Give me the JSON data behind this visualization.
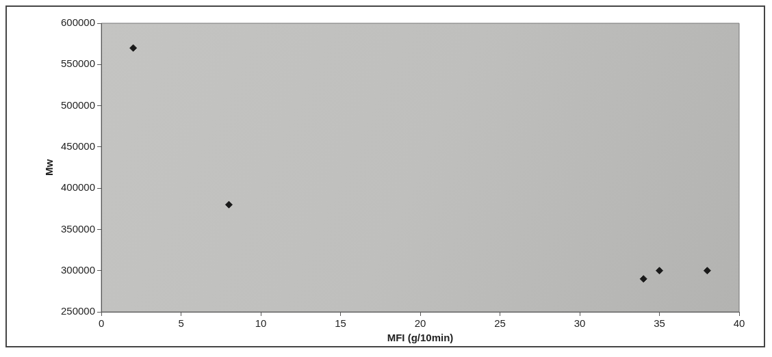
{
  "chart_data": {
    "type": "scatter",
    "xlabel": "MFI (g/10min)",
    "ylabel": "Mw",
    "x": [
      2,
      8,
      34,
      35,
      38
    ],
    "values": [
      570000,
      380000,
      290000,
      300000,
      300000
    ],
    "color": "#1a1a1a",
    "marker": "diamond",
    "xlim": [
      0,
      40
    ],
    "xticks": [
      0,
      5,
      10,
      15,
      20,
      25,
      30,
      35,
      40
    ],
    "ylim": [
      250000,
      600000
    ],
    "yticks": [
      250000,
      300000,
      350000,
      400000,
      450000,
      500000,
      550000,
      600000
    ],
    "grid": false,
    "legend": false
  }
}
